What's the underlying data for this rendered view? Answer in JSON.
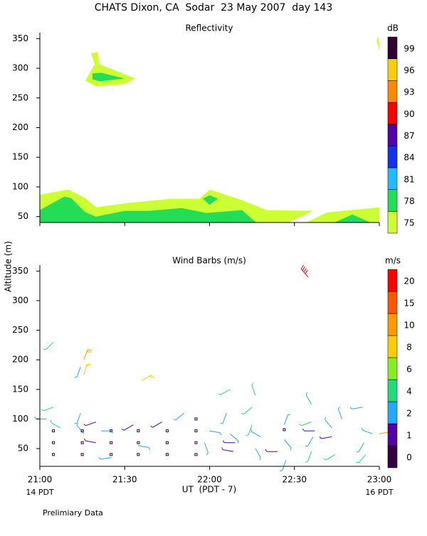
{
  "title": "CHATS Dixon, CA  Sodar  23 May 2007  day 143",
  "ylabel": "Altitude (m)",
  "note": "Prelimiary Data",
  "chart_data": [
    {
      "type": "contour",
      "title": "Reflectivity",
      "xlim": [
        21,
        23
      ],
      "ylim": [
        40,
        360
      ],
      "yticks": [
        50,
        100,
        150,
        200,
        250,
        300,
        350
      ],
      "colorbar": {
        "title": "dB",
        "levels": [
          75,
          78,
          81,
          84,
          87,
          90,
          93,
          96,
          99
        ],
        "colors": [
          "#ccff33",
          "#22dd55",
          "#22bbff",
          "#1133ee",
          "#5500aa",
          "#ff0000",
          "#ff8800",
          "#ffcc00",
          "#330033"
        ]
      },
      "regions": [
        {
          "level": 75,
          "points": [
            [
              21,
              40
            ],
            [
              21,
              87
            ],
            [
              21.168,
              95.6
            ],
            [
              21.268,
              81
            ],
            [
              21.331,
              65.6
            ],
            [
              21.52,
              73
            ],
            [
              21.771,
              80
            ],
            [
              21.939,
              80
            ],
            [
              22.002,
              95.6
            ],
            [
              22.191,
              77.6
            ],
            [
              22.338,
              60.8
            ],
            [
              22.61,
              59.6
            ],
            [
              22.463,
              40
            ]
          ]
        },
        {
          "level": 75,
          "points": [
            [
              22.568,
              40
            ],
            [
              22.694,
              57
            ],
            [
              23,
              65.6
            ],
            [
              23,
              40
            ]
          ]
        },
        {
          "level": 75,
          "points": [
            [
              21.302,
              324.8
            ],
            [
              21.34,
              327.2
            ],
            [
              21.352,
              306.8
            ],
            [
              21.562,
              282.8
            ],
            [
              21.499,
              273.2
            ],
            [
              21.331,
              269.6
            ],
            [
              21.268,
              279.2
            ],
            [
              21.323,
              306.8
            ]
          ]
        },
        {
          "level": 75,
          "points": [
            [
              22.99,
              355
            ],
            [
              23,
              345
            ],
            [
              23,
              330
            ],
            [
              22.985,
              345
            ]
          ]
        },
        {
          "level": 78,
          "points": [
            [
              21,
              40
            ],
            [
              21,
              60.8
            ],
            [
              21.143,
              83.6
            ],
            [
              21.185,
              81
            ],
            [
              21.268,
              57
            ],
            [
              21.331,
              50
            ],
            [
              21.499,
              59.6
            ],
            [
              21.646,
              59.6
            ],
            [
              21.834,
              64.4
            ],
            [
              21.981,
              56
            ],
            [
              22.191,
              60.8
            ],
            [
              22.275,
              40
            ]
          ]
        },
        {
          "level": 78,
          "points": [
            [
              21.96,
              80
            ],
            [
              22,
              86
            ],
            [
              22.05,
              80
            ],
            [
              22,
              70
            ]
          ]
        },
        {
          "level": 78,
          "points": [
            [
              21.31,
              291.2
            ],
            [
              21.361,
              292.4
            ],
            [
              21.499,
              282.8
            ],
            [
              21.352,
              278
            ],
            [
              21.31,
              281.6
            ]
          ]
        },
        {
          "level": 78,
          "points": [
            [
              22.736,
              40
            ],
            [
              22.841,
              53.6
            ],
            [
              22.946,
              40
            ]
          ]
        },
        {
          "level": 81,
          "points": [
            [
              22.82,
              40
            ],
            [
              22.84,
              44
            ],
            [
              22.86,
              40
            ]
          ]
        }
      ]
    },
    {
      "type": "barbs",
      "title": "Wind Barbs (m/s)",
      "xlabel": "UT  (PDT - 7)",
      "x_annotations": [
        "14 PDT",
        "16 PDT"
      ],
      "xlim": [
        21,
        23
      ],
      "ylim": [
        20,
        360
      ],
      "xticks": [
        {
          "value": 21,
          "label": "21:00"
        },
        {
          "value": 21.5,
          "label": "21:30"
        },
        {
          "value": 22,
          "label": "22:00"
        },
        {
          "value": 22.5,
          "label": "22:30"
        },
        {
          "value": 23,
          "label": "23:00"
        }
      ],
      "yticks": [
        50,
        100,
        150,
        200,
        250,
        300,
        350
      ],
      "colorbar": {
        "title": "m/s",
        "levels": [
          0,
          1,
          2,
          4,
          6,
          8,
          10,
          15,
          20
        ],
        "colors": [
          "#330044",
          "#5500aa",
          "#22aaff",
          "#22dd77",
          "#88ee22",
          "#ffcc00",
          "#ff9900",
          "#ff5500",
          "#ff0000"
        ]
      },
      "x": [
        21.08,
        21.26,
        21.24,
        21.26,
        21.6,
        22.58,
        21.08,
        21.04,
        21.24,
        21.12,
        21.26,
        21.08,
        21.08,
        21.08,
        21.25,
        21.25,
        21.25,
        21.42,
        21.42,
        21.42,
        21.58,
        21.58,
        21.58,
        21.75,
        21.75,
        21.75,
        21.92,
        21.92,
        21.92,
        21.92,
        21.33,
        21.33,
        21.36,
        21.42,
        21.55,
        21.58,
        21.72,
        21.85,
        22.0,
        21.97,
        22.12,
        22.1,
        22.12,
        22.15,
        22.14,
        22.25,
        22.27,
        22.25,
        22.3,
        22.27,
        22.4,
        22.44,
        22.44,
        22.45,
        22.44,
        22.6,
        22.6,
        22.62,
        22.61,
        22.6,
        22.72,
        22.72,
        22.74,
        22.78,
        22.9,
        22.91,
        22.92,
        22.96,
        23.0
      ],
      "y": [
        230,
        200,
        188,
        175,
        165,
        340,
        120,
        100,
        110,
        85,
        75,
        80,
        60,
        40,
        80,
        60,
        40,
        80,
        60,
        40,
        80,
        60,
        40,
        80,
        60,
        40,
        100,
        80,
        60,
        40,
        95,
        60,
        80,
        35,
        90,
        55,
        95,
        110,
        80,
        60,
        150,
        110,
        75,
        60,
        45,
        120,
        140,
        90,
        70,
        50,
        45,
        90,
        65,
        30,
        82,
        125,
        95,
        80,
        70,
        45,
        85,
        70,
        40,
        100,
        120,
        60,
        40,
        75,
        75
      ],
      "speed": [
        4,
        10,
        2,
        8,
        8,
        20,
        4,
        3,
        3,
        4,
        3,
        0.5,
        0.5,
        0.5,
        0.5,
        0.5,
        0.5,
        0.5,
        0.5,
        0.5,
        0.5,
        0.5,
        0.5,
        0.5,
        0.5,
        0.5,
        0.5,
        0.5,
        0.5,
        0.5,
        1.5,
        1.5,
        3,
        3,
        1.5,
        3,
        1.5,
        3,
        3,
        3,
        4,
        3,
        3,
        1.5,
        1.5,
        4,
        4,
        4,
        3,
        3,
        1.5,
        3,
        3,
        3,
        0.5,
        3,
        4,
        1.5,
        3,
        4,
        3,
        1.5,
        4,
        3,
        3,
        3,
        4,
        2,
        10
      ],
      "direction": [
        225,
        20,
        200,
        15,
        60,
        320,
        250,
        270,
        200,
        300,
        320,
        0,
        0,
        0,
        0,
        0,
        0,
        0,
        0,
        0,
        0,
        0,
        0,
        0,
        0,
        0,
        0,
        0,
        0,
        0,
        250,
        280,
        90,
        260,
        240,
        100,
        240,
        230,
        100,
        160,
        240,
        200,
        130,
        270,
        280,
        230,
        340,
        200,
        300,
        150,
        270,
        20,
        140,
        200,
        0,
        330,
        250,
        270,
        210,
        200,
        320,
        260,
        240,
        340,
        260,
        210,
        220,
        290,
        80
      ]
    }
  ]
}
